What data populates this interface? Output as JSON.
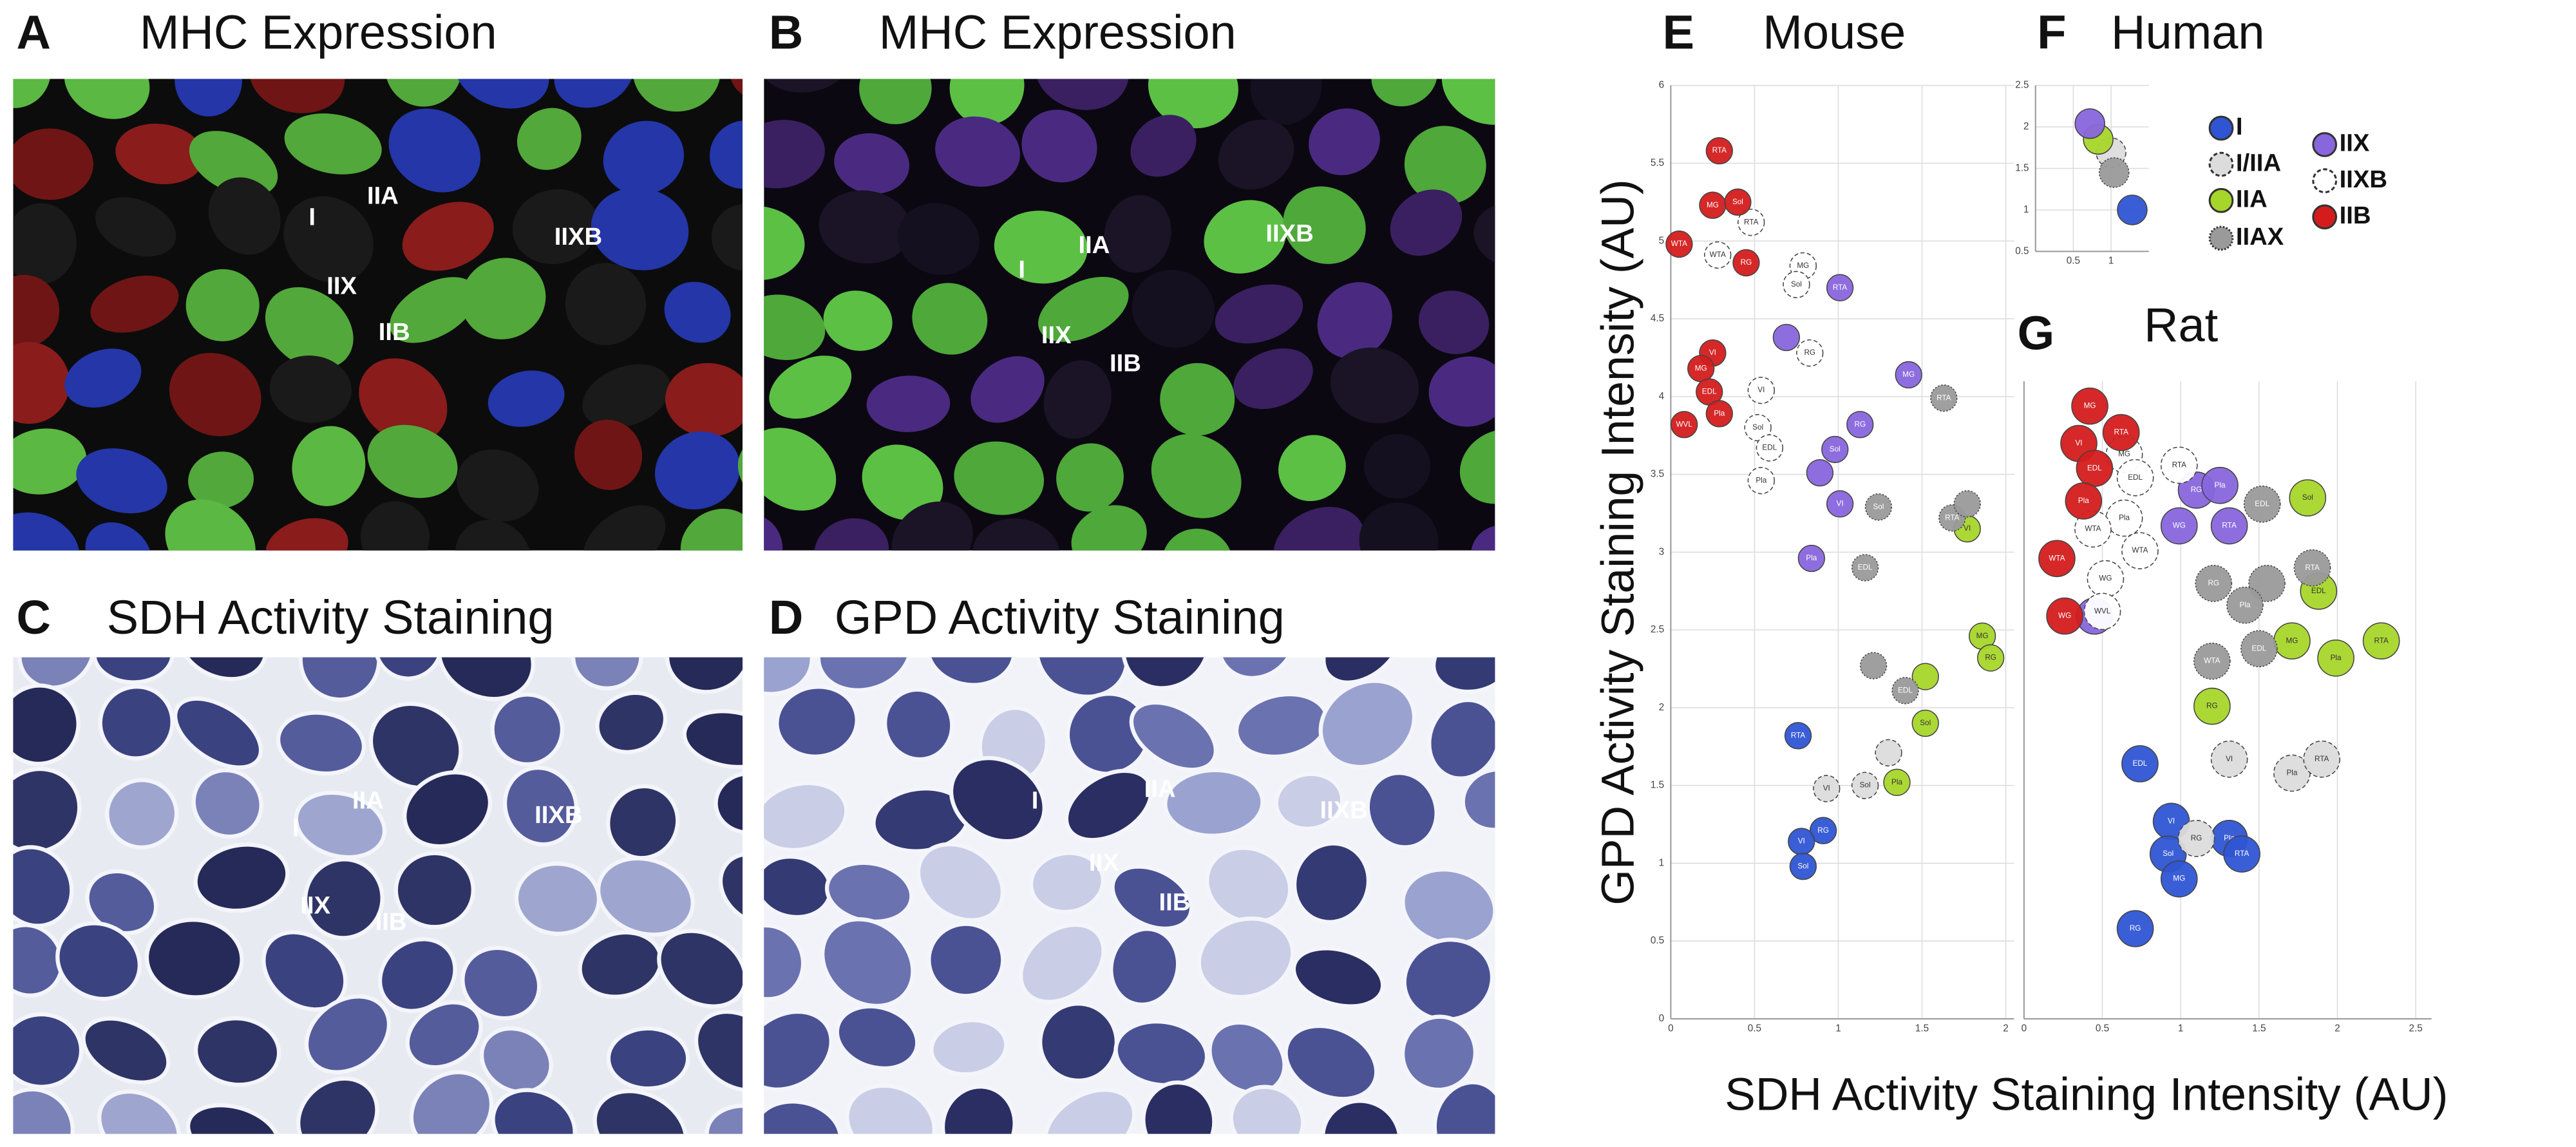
{
  "panels": [
    {
      "letter": "A",
      "title": "MHC Expression",
      "labels": [
        "I",
        "IIA",
        "IIX",
        "IIB",
        "IIXB"
      ]
    },
    {
      "letter": "B",
      "title": "MHC Expression",
      "labels": [
        "I",
        "IIA",
        "IIX",
        "IIB",
        "IIXB"
      ]
    },
    {
      "letter": "C",
      "title": "SDH Activity Staining",
      "labels": [
        "I",
        "IIA",
        "IIX",
        "IIB",
        "IIXB"
      ]
    },
    {
      "letter": "D",
      "title": "GPD Activity Staining",
      "labels": [
        "I",
        "IIA",
        "IIX",
        "IIB",
        "IIXB"
      ]
    }
  ],
  "axis_titles": {
    "y": "GPD Activity Staining Intensity (AU)",
    "x": "SDH Activity Staining Intensity (AU)"
  },
  "chart_data": [
    {
      "type": "bubble",
      "letter": "E",
      "title": "Mouse",
      "xlim": [
        0,
        2.05
      ],
      "ylim": [
        0,
        6
      ],
      "xticks": [
        0,
        0.5,
        1,
        1.5,
        2
      ],
      "yticks": [
        0,
        0.5,
        1,
        1.5,
        2,
        2.5,
        3,
        3.5,
        4,
        4.5,
        5,
        5.5,
        6
      ],
      "grid": true,
      "series": [
        {
          "color": "#2f55d4",
          "style": "solid",
          "x": [
            0.76,
            0.91,
            0.78,
            0.79
          ],
          "y": [
            1.82,
            1.21,
            1.14,
            0.98
          ],
          "labels": [
            "RTA",
            "RG",
            "VI",
            "Sol"
          ]
        },
        {
          "color": "#dcdcdc",
          "style": "dashed",
          "x": [
            0.93,
            1.16,
            1.3
          ],
          "y": [
            1.48,
            1.5,
            1.71
          ],
          "labels": [
            "VI",
            "Sol",
            null
          ]
        },
        {
          "color": "#a6d62a",
          "style": "solid",
          "x": [
            1.77,
            1.86,
            1.91,
            1.52,
            1.52,
            1.35
          ],
          "y": [
            3.15,
            2.46,
            2.32,
            2.2,
            1.9,
            1.52
          ],
          "labels": [
            "VI",
            "MG",
            "RG",
            null,
            "Sol",
            "Pla"
          ]
        },
        {
          "color": "#9a9a9a",
          "style": "dotted",
          "x": [
            1.63,
            1.24,
            1.68,
            1.77,
            1.16,
            1.21,
            1.4
          ],
          "y": [
            3.99,
            3.29,
            3.22,
            3.31,
            2.9,
            2.27,
            2.11
          ],
          "labels": [
            "RTA",
            "Sol",
            "RTA",
            null,
            "EDL",
            null,
            "EDL"
          ]
        },
        {
          "color": "#8866dd",
          "style": "solid",
          "x": [
            1.01,
            0.69,
            1.42,
            1.13,
            0.98,
            0.89,
            1.01,
            0.84
          ],
          "y": [
            4.7,
            4.38,
            4.14,
            3.82,
            3.66,
            3.51,
            3.31,
            2.96
          ],
          "labels": [
            "RTA",
            null,
            "MG",
            "RG",
            "Sol",
            null,
            "VI",
            "Pla"
          ]
        },
        {
          "color": "#ffffff",
          "style": "dashed",
          "x": [
            0.48,
            0.28,
            0.79,
            0.75,
            0.83,
            0.54,
            0.52,
            0.59,
            0.54
          ],
          "y": [
            5.12,
            4.91,
            4.84,
            4.72,
            4.28,
            4.04,
            3.8,
            3.67,
            3.46
          ],
          "labels": [
            "RTA",
            "WTA",
            "MG",
            "Sol",
            "RG",
            "VI",
            "Sol",
            "EDL",
            "Pla"
          ]
        },
        {
          "color": "#d41c1c",
          "style": "solid",
          "x": [
            0.29,
            0.25,
            0.4,
            0.05,
            0.45,
            0.25,
            0.18,
            0.23,
            0.08,
            0.29
          ],
          "y": [
            5.58,
            5.23,
            5.25,
            4.98,
            4.86,
            4.28,
            4.18,
            4.03,
            3.82,
            3.89
          ],
          "labels": [
            "RTA",
            "MG",
            "Sol",
            "WTA",
            "RG",
            "VI",
            "MG",
            "EDL",
            "WVL",
            "Pla"
          ]
        }
      ]
    },
    {
      "type": "bubble",
      "letter": "F",
      "title": "Human",
      "xlim": [
        0,
        1.5
      ],
      "ylim": [
        0.5,
        2.5
      ],
      "xticks": [
        0.5,
        1
      ],
      "yticks": [
        0.5,
        1,
        1.5,
        2,
        2.5
      ],
      "grid": true,
      "series": [
        {
          "name": "I",
          "color": "#2f55d4",
          "style": "solid",
          "x": [
            1.28
          ],
          "y": [
            1.0
          ]
        },
        {
          "name": "I/IIA",
          "color": "#dcdcdc",
          "style": "dashed",
          "x": [
            1.0
          ],
          "y": [
            1.69
          ]
        },
        {
          "name": "IIA",
          "color": "#a6d62a",
          "style": "solid",
          "x": [
            0.83
          ],
          "y": [
            1.85
          ]
        },
        {
          "name": "IIAX",
          "color": "#9a9a9a",
          "style": "dotted",
          "x": [
            1.04
          ],
          "y": [
            1.45
          ]
        },
        {
          "name": "IIX",
          "color": "#8866dd",
          "style": "solid",
          "x": [
            0.72
          ],
          "y": [
            2.04
          ]
        },
        {
          "name": "IIXB",
          "color": "#ffffff",
          "style": "dashed",
          "x": [],
          "y": []
        },
        {
          "name": "IIB",
          "color": "#d41c1c",
          "style": "solid",
          "x": [],
          "y": []
        }
      ]
    },
    {
      "type": "bubble",
      "letter": "G",
      "title": "Rat",
      "xlim": [
        0,
        2.6
      ],
      "ylim": [
        0,
        4.1
      ],
      "xticks": [
        0,
        0.5,
        1,
        1.5,
        2,
        2.5
      ],
      "grid": true,
      "series": [
        {
          "color": "#2f55d4",
          "style": "solid",
          "x": [
            0.74,
            0.94,
            0.92,
            0.99,
            1.31,
            1.39,
            0.71
          ],
          "y": [
            1.64,
            1.27,
            1.06,
            0.9,
            1.16,
            1.06,
            0.58
          ],
          "labels": [
            "EDL",
            "VI",
            "Sol",
            "MG",
            "Pla",
            "RTA",
            "RG"
          ]
        },
        {
          "color": "#dcdcdc",
          "style": "dashed",
          "x": [
            1.31,
            1.71,
            1.9,
            1.1
          ],
          "y": [
            1.67,
            1.58,
            1.67,
            1.16
          ],
          "labels": [
            "VI",
            "Pla",
            "RTA",
            "RG"
          ]
        },
        {
          "color": "#a6d62a",
          "style": "solid",
          "x": [
            1.81,
            1.88,
            1.71,
            1.99,
            2.28,
            1.2
          ],
          "y": [
            3.35,
            2.75,
            2.43,
            2.32,
            2.43,
            2.01
          ],
          "labels": [
            "Sol",
            "EDL",
            "MG",
            "Pla",
            "RTA",
            "RG"
          ]
        },
        {
          "color": "#9a9a9a",
          "style": "dotted",
          "x": [
            1.52,
            1.84,
            1.55,
            1.21,
            1.41,
            1.2,
            1.5
          ],
          "y": [
            3.31,
            2.9,
            2.8,
            2.8,
            2.66,
            2.3,
            2.38
          ],
          "labels": [
            "EDL",
            "RTA",
            null,
            "RG",
            "Pla",
            "WTA",
            "EDL"
          ]
        },
        {
          "color": "#8866dd",
          "style": "solid",
          "x": [
            1.1,
            1.25,
            0.99,
            1.31,
            0.45
          ],
          "y": [
            3.4,
            3.43,
            3.17,
            3.17,
            2.59
          ],
          "labels": [
            "RG",
            "Pla",
            "WG",
            "RTA",
            null
          ]
        },
        {
          "color": "#ffffff",
          "style": "dashed",
          "x": [
            0.64,
            0.99,
            0.71,
            0.64,
            0.44,
            0.74,
            0.52,
            0.5
          ],
          "y": [
            3.63,
            3.56,
            3.48,
            3.22,
            3.15,
            3.01,
            2.83,
            2.62
          ],
          "labels": [
            "MG",
            "RTA",
            "EDL",
            "Pla",
            "WTA",
            "WTA",
            "WG",
            "WVL"
          ]
        },
        {
          "color": "#d41c1c",
          "style": "solid",
          "x": [
            0.42,
            0.62,
            0.35,
            0.45,
            0.38,
            0.21,
            0.26
          ],
          "y": [
            3.94,
            3.77,
            3.7,
            3.54,
            3.33,
            2.96,
            2.59
          ],
          "labels": [
            "MG",
            "RTA",
            "VI",
            "EDL",
            "Pla",
            "WTA",
            "WG"
          ]
        }
      ]
    }
  ]
}
